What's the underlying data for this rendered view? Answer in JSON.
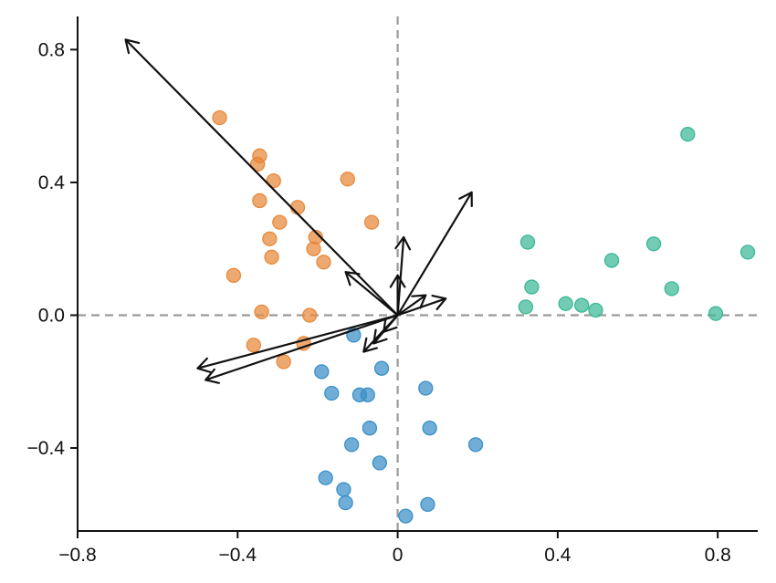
{
  "chart_data": {
    "type": "scatter",
    "title": "",
    "xlabel": "",
    "ylabel": "",
    "xlim": [
      -0.8,
      0.9
    ],
    "ylim": [
      -0.65,
      0.9
    ],
    "xticks": [
      -0.8,
      -0.4,
      0,
      0.4,
      0.8
    ],
    "xtick_labels": [
      "−0.8",
      "−0.4",
      "0",
      "0.4",
      "0.8"
    ],
    "yticks": [
      -0.4,
      0.0,
      0.4,
      0.8
    ],
    "ytick_labels": [
      "−0.4",
      "0.0",
      "0.4",
      "0.8"
    ],
    "grid": false,
    "zero_lines": true,
    "series": [
      {
        "color": "#e8883a",
        "points": [
          [
            -0.445,
            0.595
          ],
          [
            -0.345,
            0.48
          ],
          [
            -0.35,
            0.455
          ],
          [
            -0.31,
            0.405
          ],
          [
            -0.125,
            0.41
          ],
          [
            -0.345,
            0.345
          ],
          [
            -0.25,
            0.325
          ],
          [
            -0.295,
            0.28
          ],
          [
            -0.065,
            0.28
          ],
          [
            -0.32,
            0.23
          ],
          [
            -0.205,
            0.235
          ],
          [
            -0.21,
            0.2
          ],
          [
            -0.315,
            0.175
          ],
          [
            -0.185,
            0.16
          ],
          [
            -0.41,
            0.12
          ],
          [
            -0.34,
            0.01
          ],
          [
            -0.22,
            0.0
          ],
          [
            -0.36,
            -0.09
          ],
          [
            -0.235,
            -0.085
          ],
          [
            -0.285,
            -0.14
          ]
        ]
      },
      {
        "color": "#3a8fc8",
        "points": [
          [
            -0.11,
            -0.06
          ],
          [
            -0.19,
            -0.17
          ],
          [
            -0.165,
            -0.235
          ],
          [
            -0.095,
            -0.24
          ],
          [
            -0.075,
            -0.24
          ],
          [
            -0.04,
            -0.16
          ],
          [
            0.07,
            -0.22
          ],
          [
            -0.07,
            -0.34
          ],
          [
            0.08,
            -0.34
          ],
          [
            -0.115,
            -0.39
          ],
          [
            0.195,
            -0.39
          ],
          [
            -0.045,
            -0.445
          ],
          [
            -0.18,
            -0.49
          ],
          [
            -0.135,
            -0.525
          ],
          [
            -0.13,
            -0.565
          ],
          [
            0.075,
            -0.57
          ],
          [
            0.02,
            -0.605
          ]
        ]
      },
      {
        "color": "#3cb896",
        "points": [
          [
            0.725,
            0.545
          ],
          [
            0.325,
            0.22
          ],
          [
            0.64,
            0.215
          ],
          [
            0.875,
            0.19
          ],
          [
            0.535,
            0.165
          ],
          [
            0.335,
            0.085
          ],
          [
            0.685,
            0.08
          ],
          [
            0.42,
            0.035
          ],
          [
            0.46,
            0.03
          ],
          [
            0.32,
            0.025
          ],
          [
            0.495,
            0.015
          ],
          [
            0.795,
            0.005
          ]
        ]
      }
    ],
    "vectors": [
      [
        -0.68,
        0.83
      ],
      [
        -0.5,
        -0.16
      ],
      [
        -0.48,
        -0.195
      ],
      [
        0.185,
        0.37
      ],
      [
        0.015,
        0.235
      ],
      [
        -0.13,
        0.13
      ],
      [
        0.0,
        0.12
      ],
      [
        0.12,
        0.05
      ],
      [
        0.07,
        0.06
      ],
      [
        -0.085,
        -0.11
      ],
      [
        -0.06,
        -0.085
      ],
      [
        -0.035,
        -0.05
      ]
    ]
  }
}
